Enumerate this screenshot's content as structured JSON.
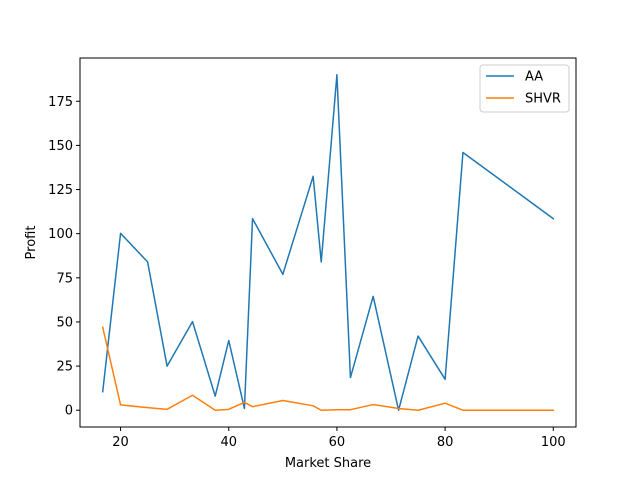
{
  "chart_data": {
    "type": "line",
    "title": "",
    "xlabel": "Market Share",
    "ylabel": "Profit",
    "xlim": [
      12.5,
      104.2
    ],
    "ylim": [
      -9.5,
      199.5
    ],
    "x_ticks": [
      20,
      40,
      60,
      80,
      100
    ],
    "y_ticks": [
      0,
      25,
      50,
      75,
      100,
      125,
      150,
      175
    ],
    "grid": false,
    "legend_position": "top-right",
    "series": [
      {
        "name": "AA",
        "color": "#1f77b4",
        "points": [
          [
            16.7,
            10.5
          ],
          [
            20.0,
            100.2
          ],
          [
            25.0,
            84.0
          ],
          [
            28.6,
            25.0
          ],
          [
            33.3,
            50.2
          ],
          [
            37.5,
            8.0
          ],
          [
            40.0,
            39.5
          ],
          [
            42.9,
            1.0
          ],
          [
            44.4,
            108.5
          ],
          [
            50.0,
            77.0
          ],
          [
            55.6,
            132.5
          ],
          [
            57.1,
            84.0
          ],
          [
            60.0,
            190.0
          ],
          [
            62.5,
            18.5
          ],
          [
            66.7,
            64.5
          ],
          [
            71.4,
            0.0
          ],
          [
            75.0,
            42.0
          ],
          [
            80.0,
            17.5
          ],
          [
            83.3,
            146.0
          ],
          [
            100.0,
            108.5
          ]
        ]
      },
      {
        "name": "SHVR",
        "color": "#ff7f0e",
        "points": [
          [
            16.7,
            47.0
          ],
          [
            20.0,
            3.0
          ],
          [
            25.0,
            1.5
          ],
          [
            28.6,
            0.5
          ],
          [
            33.3,
            8.5
          ],
          [
            37.5,
            0.0
          ],
          [
            40.0,
            0.5
          ],
          [
            42.9,
            4.5
          ],
          [
            44.4,
            2.0
          ],
          [
            50.0,
            5.5
          ],
          [
            55.6,
            2.5
          ],
          [
            57.1,
            0.0
          ],
          [
            60.0,
            0.3
          ],
          [
            62.5,
            0.3
          ],
          [
            66.7,
            3.2
          ],
          [
            71.4,
            1.0
          ],
          [
            75.0,
            0.0
          ],
          [
            80.0,
            4.0
          ],
          [
            83.3,
            0.0
          ],
          [
            100.0,
            0.0
          ]
        ]
      }
    ]
  }
}
